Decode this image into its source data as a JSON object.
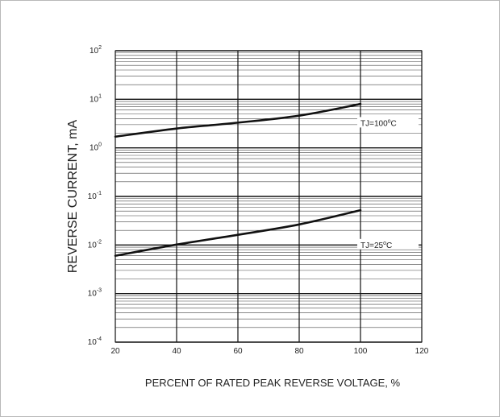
{
  "chart_data": {
    "type": "line",
    "title": "",
    "xlabel": "PERCENT OF RATED PEAK REVERSE VOLTAGE, %",
    "ylabel": "REVERSE CURRENT, mA",
    "xlim": [
      20,
      120
    ],
    "ylim": [
      0.0001,
      100
    ],
    "y_scale": "log",
    "grid": true,
    "x_ticks": [
      "20",
      "40",
      "60",
      "80",
      "100",
      "120"
    ],
    "y_ticks": [
      {
        "base": "10",
        "exp": "-4",
        "value": 0.0001
      },
      {
        "base": "10",
        "exp": "-3",
        "value": 0.001
      },
      {
        "base": "10",
        "exp": "-2",
        "value": 0.01
      },
      {
        "base": "10",
        "exp": "-1",
        "value": 0.1
      },
      {
        "base": "10",
        "exp": "0",
        "value": 1
      },
      {
        "base": "10",
        "exp": "1",
        "value": 10
      },
      {
        "base": "10",
        "exp": "2",
        "value": 100
      }
    ],
    "series": [
      {
        "name": "TJ=100°C",
        "label_main": "TJ=100",
        "label_unit": "C",
        "x": [
          20,
          40,
          60,
          80,
          100
        ],
        "y": [
          1.7,
          2.5,
          3.3,
          4.6,
          8.0
        ]
      },
      {
        "name": "TJ=25°C",
        "label_main": "TJ=25",
        "label_unit": "C",
        "x": [
          20,
          40,
          60,
          80,
          100
        ],
        "y": [
          0.006,
          0.0102,
          0.0162,
          0.0265,
          0.052
        ]
      }
    ]
  }
}
